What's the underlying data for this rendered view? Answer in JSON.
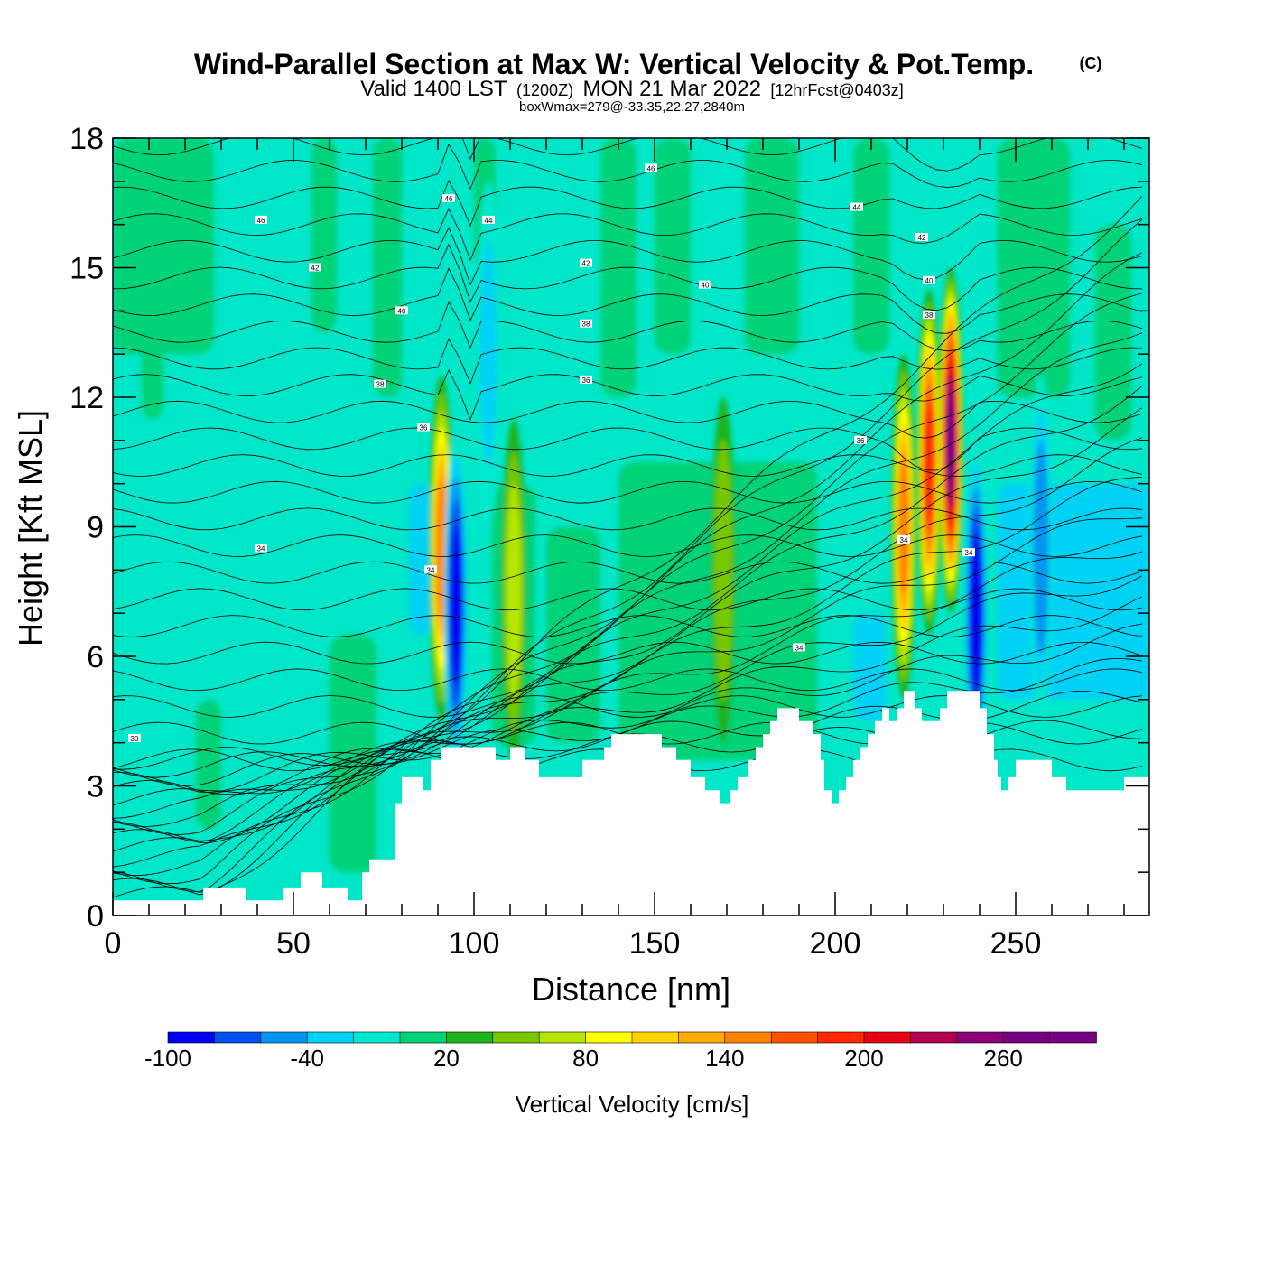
{
  "title": {
    "main": "Wind-Parallel Section at Max W: Vertical Velocity & Pot.Temp.",
    "copyright": "(C)",
    "valid_prefix": "Valid 1400 LST",
    "valid_z": "(1200Z)",
    "valid_date": "MON 21 Mar 2022",
    "valid_fcst": "[12hrFcst@0403z]",
    "boxwmax": "boxWmax=279@-33.35,22.27,2840m"
  },
  "chart_data": {
    "type": "heatmap",
    "xlabel": "Distance [nm]",
    "ylabel": "Height [Kft MSL]",
    "xlim": [
      0,
      287
    ],
    "ylim": [
      0,
      18
    ],
    "x_ticks": [
      0,
      50,
      100,
      150,
      200,
      250
    ],
    "y_ticks": [
      0,
      3,
      6,
      9,
      12,
      15,
      18
    ],
    "colorbar": {
      "label": "Vertical Velocity [cm/s]",
      "bounds": [
        -100,
        -80,
        -60,
        -40,
        -20,
        0,
        20,
        40,
        60,
        80,
        100,
        120,
        140,
        160,
        180,
        200,
        220,
        240,
        260,
        280,
        300
      ],
      "tick_labels": [
        "-100",
        "-40",
        "20",
        "80",
        "140",
        "200",
        "260"
      ],
      "tick_values": [
        -100,
        -40,
        20,
        80,
        140,
        200,
        260
      ],
      "colors": [
        "#0000f0",
        "#0050f0",
        "#0096f0",
        "#00d2f5",
        "#00e8cd",
        "#00d278",
        "#1eb41e",
        "#78c800",
        "#b4e600",
        "#ffff00",
        "#ffd200",
        "#ffaa00",
        "#ff8200",
        "#ff5000",
        "#ff2800",
        "#e60014",
        "#b40050",
        "#8c0078",
        "#780082",
        "#780082"
      ]
    },
    "terrain": [
      [
        0,
        0.35
      ],
      [
        25,
        0.35
      ],
      [
        25,
        0.65
      ],
      [
        37,
        0.65
      ],
      [
        37,
        0.35
      ],
      [
        47,
        0.35
      ],
      [
        47,
        0.65
      ],
      [
        52,
        0.65
      ],
      [
        52,
        1.0
      ],
      [
        58,
        1.0
      ],
      [
        58,
        0.65
      ],
      [
        65,
        0.65
      ],
      [
        65,
        0.35
      ],
      [
        69,
        0.35
      ],
      [
        69,
        1.0
      ],
      [
        71,
        1.0
      ],
      [
        71,
        1.3
      ],
      [
        78,
        1.3
      ],
      [
        78,
        2.6
      ],
      [
        80,
        2.6
      ],
      [
        80,
        3.2
      ],
      [
        86,
        3.2
      ],
      [
        86,
        2.9
      ],
      [
        88,
        2.9
      ],
      [
        88,
        3.6
      ],
      [
        91,
        3.6
      ],
      [
        91,
        3.9
      ],
      [
        106,
        3.9
      ],
      [
        106,
        3.6
      ],
      [
        110,
        3.6
      ],
      [
        110,
        3.9
      ],
      [
        114,
        3.9
      ],
      [
        114,
        3.6
      ],
      [
        118,
        3.6
      ],
      [
        118,
        3.2
      ],
      [
        130,
        3.2
      ],
      [
        130,
        3.6
      ],
      [
        136,
        3.6
      ],
      [
        136,
        3.9
      ],
      [
        138,
        3.9
      ],
      [
        138,
        4.2
      ],
      [
        152,
        4.2
      ],
      [
        152,
        3.9
      ],
      [
        156,
        3.9
      ],
      [
        156,
        3.6
      ],
      [
        160,
        3.6
      ],
      [
        160,
        3.2
      ],
      [
        164,
        3.2
      ],
      [
        164,
        2.9
      ],
      [
        168,
        2.9
      ],
      [
        168,
        2.6
      ],
      [
        171,
        2.6
      ],
      [
        171,
        2.9
      ],
      [
        173,
        2.9
      ],
      [
        173,
        3.2
      ],
      [
        176,
        3.2
      ],
      [
        176,
        3.6
      ],
      [
        178,
        3.6
      ],
      [
        178,
        3.9
      ],
      [
        180,
        3.9
      ],
      [
        180,
        4.2
      ],
      [
        182,
        4.2
      ],
      [
        182,
        4.5
      ],
      [
        184,
        4.5
      ],
      [
        184,
        4.8
      ],
      [
        190,
        4.8
      ],
      [
        190,
        4.5
      ],
      [
        194,
        4.5
      ],
      [
        194,
        4.2
      ],
      [
        196,
        4.2
      ],
      [
        196,
        3.6
      ],
      [
        197,
        3.6
      ],
      [
        197,
        2.9
      ],
      [
        199,
        2.9
      ],
      [
        199,
        2.6
      ],
      [
        201,
        2.6
      ],
      [
        201,
        2.9
      ],
      [
        203,
        2.9
      ],
      [
        203,
        3.2
      ],
      [
        205,
        3.2
      ],
      [
        205,
        3.6
      ],
      [
        207,
        3.6
      ],
      [
        207,
        3.9
      ],
      [
        209,
        3.9
      ],
      [
        209,
        4.2
      ],
      [
        211,
        4.2
      ],
      [
        211,
        4.5
      ],
      [
        213,
        4.5
      ],
      [
        213,
        4.8
      ],
      [
        215,
        4.8
      ],
      [
        215,
        4.5
      ],
      [
        217,
        4.5
      ],
      [
        217,
        4.8
      ],
      [
        219,
        4.8
      ],
      [
        219,
        5.2
      ],
      [
        222,
        5.2
      ],
      [
        222,
        4.8
      ],
      [
        224,
        4.8
      ],
      [
        224,
        4.5
      ],
      [
        229,
        4.5
      ],
      [
        229,
        4.8
      ],
      [
        231,
        4.8
      ],
      [
        231,
        5.2
      ],
      [
        240,
        5.2
      ],
      [
        240,
        4.8
      ],
      [
        242,
        4.8
      ],
      [
        242,
        4.2
      ],
      [
        244,
        4.2
      ],
      [
        244,
        3.6
      ],
      [
        245,
        3.6
      ],
      [
        245,
        3.2
      ],
      [
        246,
        3.2
      ],
      [
        246,
        2.9
      ],
      [
        248,
        2.9
      ],
      [
        248,
        3.2
      ],
      [
        250,
        3.2
      ],
      [
        250,
        3.6
      ],
      [
        260,
        3.6
      ],
      [
        260,
        3.2
      ],
      [
        264,
        3.2
      ],
      [
        264,
        2.9
      ],
      [
        280,
        2.9
      ],
      [
        280,
        3.2
      ],
      [
        287,
        3.2
      ],
      [
        287,
        0
      ]
    ],
    "updraft_cells": [
      {
        "x": 91,
        "y": 8.5,
        "peak": 140
      },
      {
        "x": 111,
        "y": 7.5,
        "peak": 70
      },
      {
        "x": 169,
        "y": 8.0,
        "peak": 55
      },
      {
        "x": 219,
        "y": 9.0,
        "peak": 150
      },
      {
        "x": 226,
        "y": 10.5,
        "peak": 180
      },
      {
        "x": 232,
        "y": 11.0,
        "peak": 279
      }
    ],
    "downdraft_cells": [
      {
        "x": 95,
        "y": 7.2,
        "peak": -100
      },
      {
        "x": 104,
        "y": 13.0,
        "peak": -30
      },
      {
        "x": 239,
        "y": 7.0,
        "peak": -100
      },
      {
        "x": 257,
        "y": 8.5,
        "peak": -60
      }
    ],
    "theta_contour_labels": [
      "30",
      "34",
      "36",
      "38",
      "40",
      "42",
      "44",
      "46"
    ]
  }
}
